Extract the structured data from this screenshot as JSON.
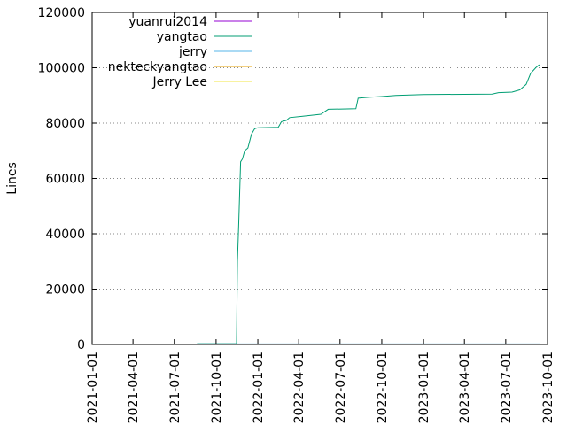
{
  "chart_data": {
    "type": "line",
    "ylabel": "Lines",
    "ylim": [
      0,
      120000
    ],
    "y_ticks": [
      0,
      20000,
      40000,
      60000,
      80000,
      100000,
      120000
    ],
    "y_tick_labels": [
      "0",
      "20000",
      "40000",
      "60000",
      "80000",
      "100000",
      "120000"
    ],
    "xlim": [
      "2021-01-01",
      "2023-10-01"
    ],
    "x_ticks": [
      "2021-01-01",
      "2021-04-01",
      "2021-07-01",
      "2021-10-01",
      "2022-01-01",
      "2022-04-01",
      "2022-07-01",
      "2022-10-01",
      "2023-01-01",
      "2023-04-01",
      "2023-07-01",
      "2023-10-01"
    ],
    "grid": "dotted, at upper y ticks",
    "legend_position": "top-left",
    "series": [
      {
        "name": "yuanrui2014",
        "color": "#9400d3",
        "points": [
          [
            "2021-08-20",
            0
          ],
          [
            "2023-09-15",
            0
          ]
        ]
      },
      {
        "name": "yangtao",
        "color": "#009e73",
        "points": [
          [
            "2021-08-20",
            300
          ],
          [
            "2021-11-15",
            300
          ],
          [
            "2021-11-17",
            30000
          ],
          [
            "2021-11-20",
            44000
          ],
          [
            "2021-11-24",
            66000
          ],
          [
            "2021-11-28",
            67000
          ],
          [
            "2021-12-03",
            70000
          ],
          [
            "2021-12-10",
            71000
          ],
          [
            "2021-12-18",
            76000
          ],
          [
            "2021-12-25",
            78000
          ],
          [
            "2022-01-01",
            78300
          ],
          [
            "2022-02-15",
            78500
          ],
          [
            "2022-02-22",
            80500
          ],
          [
            "2022-03-05",
            81000
          ],
          [
            "2022-03-12",
            82000
          ],
          [
            "2022-04-10",
            82500
          ],
          [
            "2022-05-20",
            83200
          ],
          [
            "2022-06-05",
            85000
          ],
          [
            "2022-08-05",
            85200
          ],
          [
            "2022-08-10",
            89000
          ],
          [
            "2022-09-01",
            89300
          ],
          [
            "2022-10-01",
            89600
          ],
          [
            "2022-11-01",
            90000
          ],
          [
            "2023-01-01",
            90300
          ],
          [
            "2023-06-01",
            90500
          ],
          [
            "2023-06-15",
            91000
          ],
          [
            "2023-07-15",
            91200
          ],
          [
            "2023-08-01",
            92000
          ],
          [
            "2023-08-15",
            94000
          ],
          [
            "2023-08-25",
            98000
          ],
          [
            "2023-09-05",
            100000
          ],
          [
            "2023-09-12",
            101000
          ],
          [
            "2023-09-15",
            101000
          ]
        ]
      },
      {
        "name": "jerry",
        "color": "#56b4e9",
        "points": [
          [
            "2021-08-20",
            200
          ],
          [
            "2023-09-15",
            200
          ]
        ]
      },
      {
        "name": "nekteckyangtao",
        "color": "#e69f00",
        "points": [
          [
            "2021-08-20",
            0
          ],
          [
            "2023-09-15",
            0
          ]
        ]
      },
      {
        "name": "Jerry Lee",
        "color": "#f0e442",
        "points": [
          [
            "2021-08-20",
            0
          ],
          [
            "2023-09-15",
            0
          ]
        ]
      }
    ]
  }
}
